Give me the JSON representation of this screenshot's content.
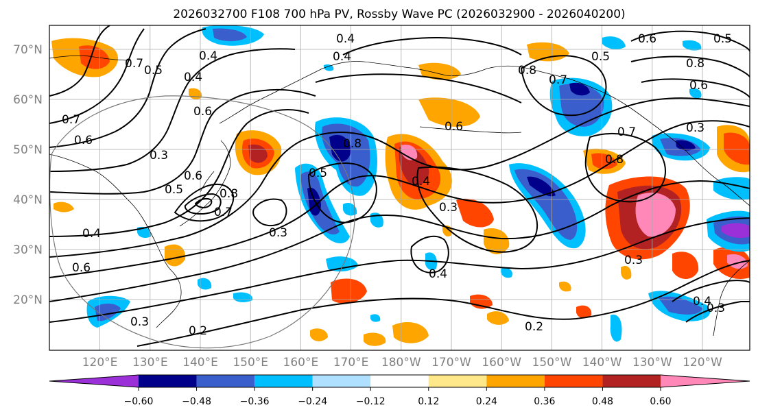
{
  "title": "2026032700 F108 700 hPa PV, Rossby Wave PC (2026032900 - 2026040200)",
  "map": {
    "lon_labels": [
      "120°E",
      "130°E",
      "140°E",
      "150°E",
      "160°E",
      "170°E",
      "180°W",
      "170°W",
      "160°W",
      "150°W",
      "140°W",
      "130°W",
      "120°W"
    ],
    "lat_labels": [
      "70°N",
      "60°N",
      "50°N",
      "40°N",
      "30°N",
      "20°N"
    ]
  },
  "contour_labels": [
    "0.4",
    "0.4",
    "0.4",
    "0.4",
    "0.5",
    "0.6",
    "0.6",
    "0.7",
    "0.7",
    "0.8",
    "0.8",
    "0.8",
    "0.6",
    "0.5",
    "0.7",
    "0.8",
    "0.5",
    "0.6",
    "0.5",
    "0.6",
    "0.3",
    "0.4",
    "0.6",
    "0.7",
    "0.5",
    "0.3",
    "0.3",
    "0.4",
    "0.3",
    "0.2",
    "0.3",
    "0.4",
    "0.6",
    "0.7",
    "0.3",
    "0.2",
    "0.8",
    "0.4",
    "0.3"
  ],
  "colorbar": {
    "ticks": [
      "−0.60",
      "−0.48",
      "−0.36",
      "−0.24",
      "−0.12",
      "0.12",
      "0.24",
      "0.36",
      "0.48",
      "0.60"
    ],
    "colors": [
      "#9b30d9",
      "#00008b",
      "#3a5fcd",
      "#00bfff",
      "#b0e0ff",
      "#ffffff",
      "#ffe88a",
      "#ffa500",
      "#ff4500",
      "#b22222",
      "#ff88b8"
    ]
  }
}
